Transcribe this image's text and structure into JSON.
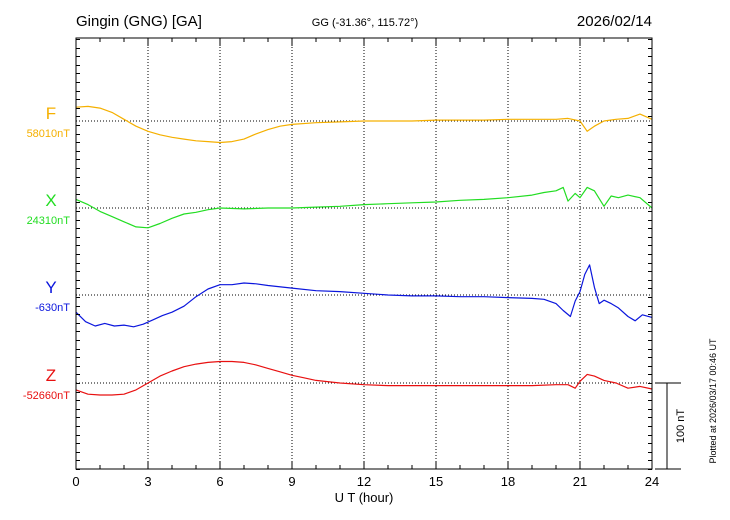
{
  "header": {
    "station": "Gingin (GNG)  [GA]",
    "coords": "GG (-31.36°, 115.72°)",
    "date": "2026/02/14"
  },
  "footer": {
    "plotted": "Plotted at 2026/03/17 00:46 UT"
  },
  "chart_data": {
    "type": "line",
    "xlabel": "U T (hour)",
    "xlim": [
      0,
      24
    ],
    "xticks": [
      "0",
      "3",
      "6",
      "9",
      "12",
      "15",
      "18",
      "21",
      "24"
    ],
    "grid": true,
    "scale_bar": {
      "label": "100 nT",
      "value_nT": 100
    },
    "series": [
      {
        "name": "F",
        "baseline_label": "58010nT",
        "baseline_nT": 58010,
        "color": "#f5b000",
        "x": [
          0,
          0.5,
          1,
          1.5,
          2,
          2.5,
          3,
          3.5,
          4,
          4.5,
          5,
          5.5,
          6,
          6.5,
          7,
          7.5,
          8,
          8.5,
          9,
          10,
          11,
          12,
          13,
          14,
          15,
          16,
          17,
          18,
          19,
          20,
          20.5,
          21,
          21.3,
          21.6,
          22,
          22.5,
          23,
          23.5,
          24
        ],
        "y": [
          58026,
          58027,
          58025,
          58020,
          58012,
          58004,
          57998,
          57994,
          57991,
          57989,
          57987,
          57986,
          57985,
          57986,
          57989,
          57995,
          58000,
          58004,
          58006,
          58008,
          58009,
          58010,
          58010,
          58010,
          58011,
          58011,
          58011,
          58012,
          58012,
          58012,
          58013,
          58010,
          57998,
          58004,
          58010,
          58012,
          58013,
          58018,
          58012
        ]
      },
      {
        "name": "X",
        "baseline_label": "24310nT",
        "baseline_nT": 24310,
        "color": "#22dd22",
        "x": [
          0,
          0.5,
          1,
          1.5,
          2,
          2.5,
          3,
          3.5,
          4,
          4.5,
          5,
          5.5,
          6,
          7,
          8,
          9,
          10,
          11,
          12,
          13,
          14,
          15,
          16,
          17,
          18,
          19,
          19.5,
          20,
          20.3,
          20.5,
          20.8,
          21,
          21.3,
          21.6,
          22,
          22.3,
          22.6,
          23,
          23.5,
          24
        ],
        "y": [
          24320,
          24314,
          24306,
          24300,
          24294,
          24288,
          24287,
          24292,
          24298,
          24303,
          24305,
          24308,
          24310,
          24309,
          24310,
          24310,
          24311,
          24312,
          24314,
          24315,
          24316,
          24317,
          24319,
          24320,
          24322,
          24325,
          24328,
          24330,
          24334,
          24318,
          24327,
          24322,
          24334,
          24330,
          24312,
          24324,
          24322,
          24325,
          24322,
          24310
        ]
      },
      {
        "name": "Y",
        "baseline_label": "-630nT",
        "baseline_nT": -630,
        "color": "#0b16dd",
        "x": [
          0,
          0.4,
          0.8,
          1.2,
          1.6,
          2,
          2.4,
          2.8,
          3.2,
          3.6,
          4,
          4.5,
          5,
          5.5,
          6,
          6.5,
          7,
          7.5,
          8,
          9,
          10,
          11,
          12,
          13,
          14,
          15,
          16,
          17,
          18,
          19,
          19.5,
          20,
          20.3,
          20.6,
          20.8,
          21,
          21.2,
          21.4,
          21.6,
          21.8,
          22,
          22.3,
          22.6,
          23,
          23.3,
          23.6,
          24
        ],
        "y": [
          -650,
          -661,
          -666,
          -663,
          -666,
          -665,
          -667,
          -664,
          -659,
          -654,
          -650,
          -643,
          -632,
          -623,
          -618,
          -618,
          -616,
          -617,
          -619,
          -622,
          -625,
          -626,
          -628,
          -630,
          -631,
          -631,
          -632,
          -632,
          -633,
          -634,
          -635,
          -640,
          -648,
          -655,
          -637,
          -626,
          -606,
          -595,
          -621,
          -640,
          -636,
          -640,
          -645,
          -655,
          -660,
          -653,
          -656
        ]
      },
      {
        "name": "Z",
        "baseline_label": "-52660nT",
        "baseline_nT": -52660,
        "color": "#e81010",
        "x": [
          0,
          0.5,
          1,
          1.5,
          2,
          2.5,
          3,
          3.5,
          4,
          4.5,
          5,
          5.5,
          6,
          6.5,
          7,
          7.5,
          8,
          8.5,
          9,
          9.5,
          10,
          11,
          12,
          13,
          14,
          15,
          16,
          17,
          18,
          19,
          20,
          20.5,
          20.8,
          21,
          21.3,
          21.6,
          22,
          22.5,
          23,
          23.5,
          24
        ],
        "y": [
          -52668,
          -52673,
          -52674,
          -52674,
          -52673,
          -52668,
          -52660,
          -52652,
          -52646,
          -52641,
          -52638,
          -52636,
          -52635,
          -52635,
          -52636,
          -52639,
          -52643,
          -52647,
          -52651,
          -52654,
          -52657,
          -52660,
          -52662,
          -52663,
          -52663,
          -52663,
          -52663,
          -52663,
          -52663,
          -52663,
          -52662,
          -52662,
          -52666,
          -52658,
          -52650,
          -52652,
          -52657,
          -52660,
          -52666,
          -52664,
          -52667
        ]
      }
    ]
  }
}
